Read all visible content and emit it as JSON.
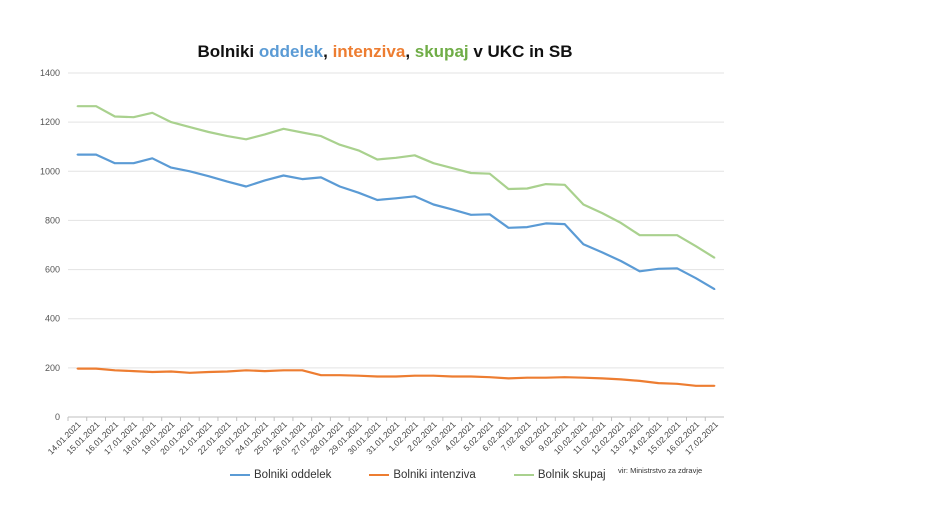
{
  "chart_data": {
    "type": "line",
    "title_parts": [
      "Bolniki ",
      "oddelek",
      ", ",
      "intenziva",
      ", ",
      "skupaj",
      " v UKC in SB"
    ],
    "categories": [
      "14.01.2021",
      "15.01.2021",
      "16.01.2021",
      "17.01.2021",
      "18.01.2021",
      "19.01.2021",
      "20.01.2021",
      "21.01.2021",
      "22.01.2021",
      "23.01.2021",
      "24.01.2021",
      "25.01.2021",
      "26.01.2021",
      "27.01.2021",
      "28.01.2021",
      "29.01.2021",
      "30.01.2021",
      "31.01.2021",
      "1.02.2021",
      "2.02.2021",
      "3.02.2021",
      "4.02.2021",
      "5.02.2021",
      "6.02.2021",
      "7.02.2021",
      "8.02.2021",
      "9.02.2021",
      "10.02.2021",
      "11.02.2021",
      "12.02.2021",
      "13.02.2021",
      "14.02.2021",
      "15.02.2021",
      "16.02.2021",
      "17.02.2021"
    ],
    "series": [
      {
        "name": "Bolniki oddelek",
        "color": "#5b9bd5",
        "values": [
          1068,
          1068,
          1033,
          1033,
          1053,
          1015,
          1000,
          980,
          958,
          938,
          963,
          983,
          968,
          975,
          938,
          913,
          883,
          890,
          898,
          865,
          845,
          823,
          825,
          770,
          773,
          788,
          785,
          703,
          670,
          635,
          593,
          603,
          605,
          565,
          520
        ]
      },
      {
        "name": "Bolniki intenziva",
        "color": "#ed7d31",
        "values": [
          197,
          197,
          190,
          187,
          183,
          185,
          180,
          183,
          185,
          190,
          187,
          190,
          190,
          170,
          170,
          168,
          165,
          165,
          168,
          168,
          165,
          165,
          162,
          157,
          160,
          160,
          162,
          160,
          157,
          153,
          147,
          138,
          135,
          127,
          127
        ]
      },
      {
        "name": "Bolnik skupaj",
        "color": "#a9d18e",
        "values": [
          1265,
          1265,
          1223,
          1220,
          1238,
          1200,
          1180,
          1160,
          1143,
          1130,
          1150,
          1173,
          1158,
          1143,
          1108,
          1085,
          1048,
          1055,
          1065,
          1033,
          1013,
          993,
          990,
          928,
          930,
          948,
          945,
          865,
          830,
          790,
          740,
          740,
          740,
          695,
          648
        ]
      }
    ],
    "ylim": [
      0,
      1400
    ],
    "yticks": [
      "0",
      "200",
      "400",
      "600",
      "800",
      "1000",
      "1200",
      "1400"
    ],
    "grid": true,
    "legend_position": "bottom",
    "source": "vir: Ministrstvo za zdravje"
  }
}
